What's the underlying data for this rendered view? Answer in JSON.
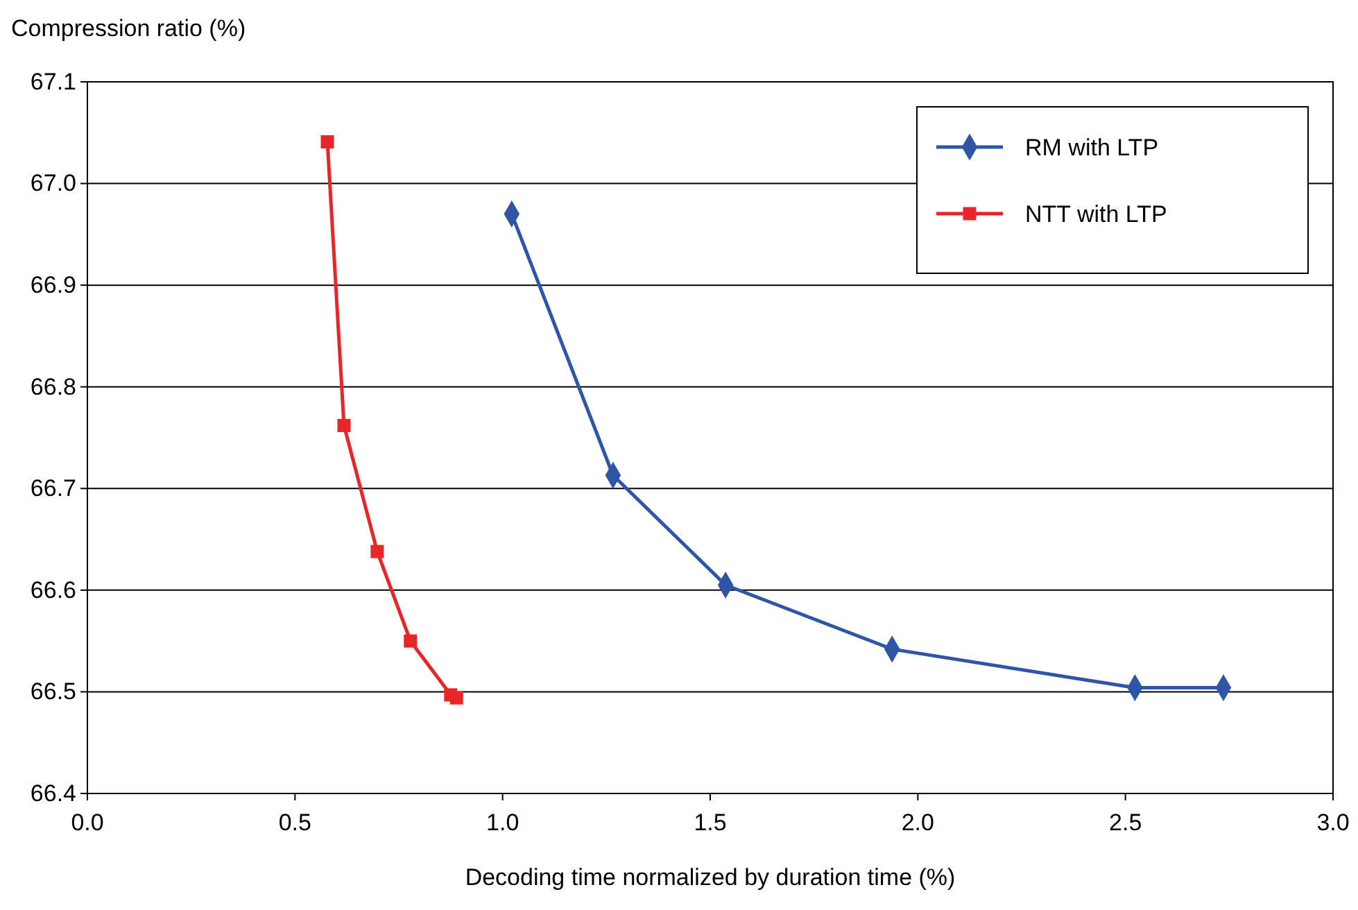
{
  "chart_data": {
    "type": "line",
    "xlabel": "Decoding time normalized by duration time (%)",
    "ylabel": "Compression ratio (%)",
    "xlim": [
      0,
      3
    ],
    "xticks": [
      {
        "value": 0,
        "label": "0.0"
      },
      {
        "value": 0.5,
        "label": "0.5"
      },
      {
        "value": 1,
        "label": "1.0"
      },
      {
        "value": 1.5,
        "label": "1.5"
      },
      {
        "value": 2,
        "label": "2.0"
      },
      {
        "value": 2.5,
        "label": "2.5"
      },
      {
        "value": 3,
        "label": "3.0"
      }
    ],
    "ylim": [
      66.4,
      67.1
    ],
    "yticks": [
      66.4,
      66.5,
      66.6,
      66.7,
      66.8,
      66.9,
      {
        "value": 67,
        "label": "67.0"
      },
      67.1
    ],
    "grid": "y",
    "legend": "top right",
    "series": [
      {
        "name": "RM with LTP",
        "color": "#2f56a6",
        "marker": "diamond",
        "x": [
          1.022,
          1.266,
          1.537,
          1.938,
          2.523,
          2.736
        ],
        "values": [
          66.97,
          66.713,
          66.605,
          66.542,
          66.504,
          66.504
        ]
      },
      {
        "name": "NTT with LTP",
        "color": "#e8262a",
        "marker": "square",
        "x": [
          0.578,
          0.618,
          0.698,
          0.778,
          0.875,
          0.889
        ],
        "values": [
          67.041,
          66.762,
          66.638,
          66.55,
          66.497,
          66.494
        ]
      }
    ]
  }
}
